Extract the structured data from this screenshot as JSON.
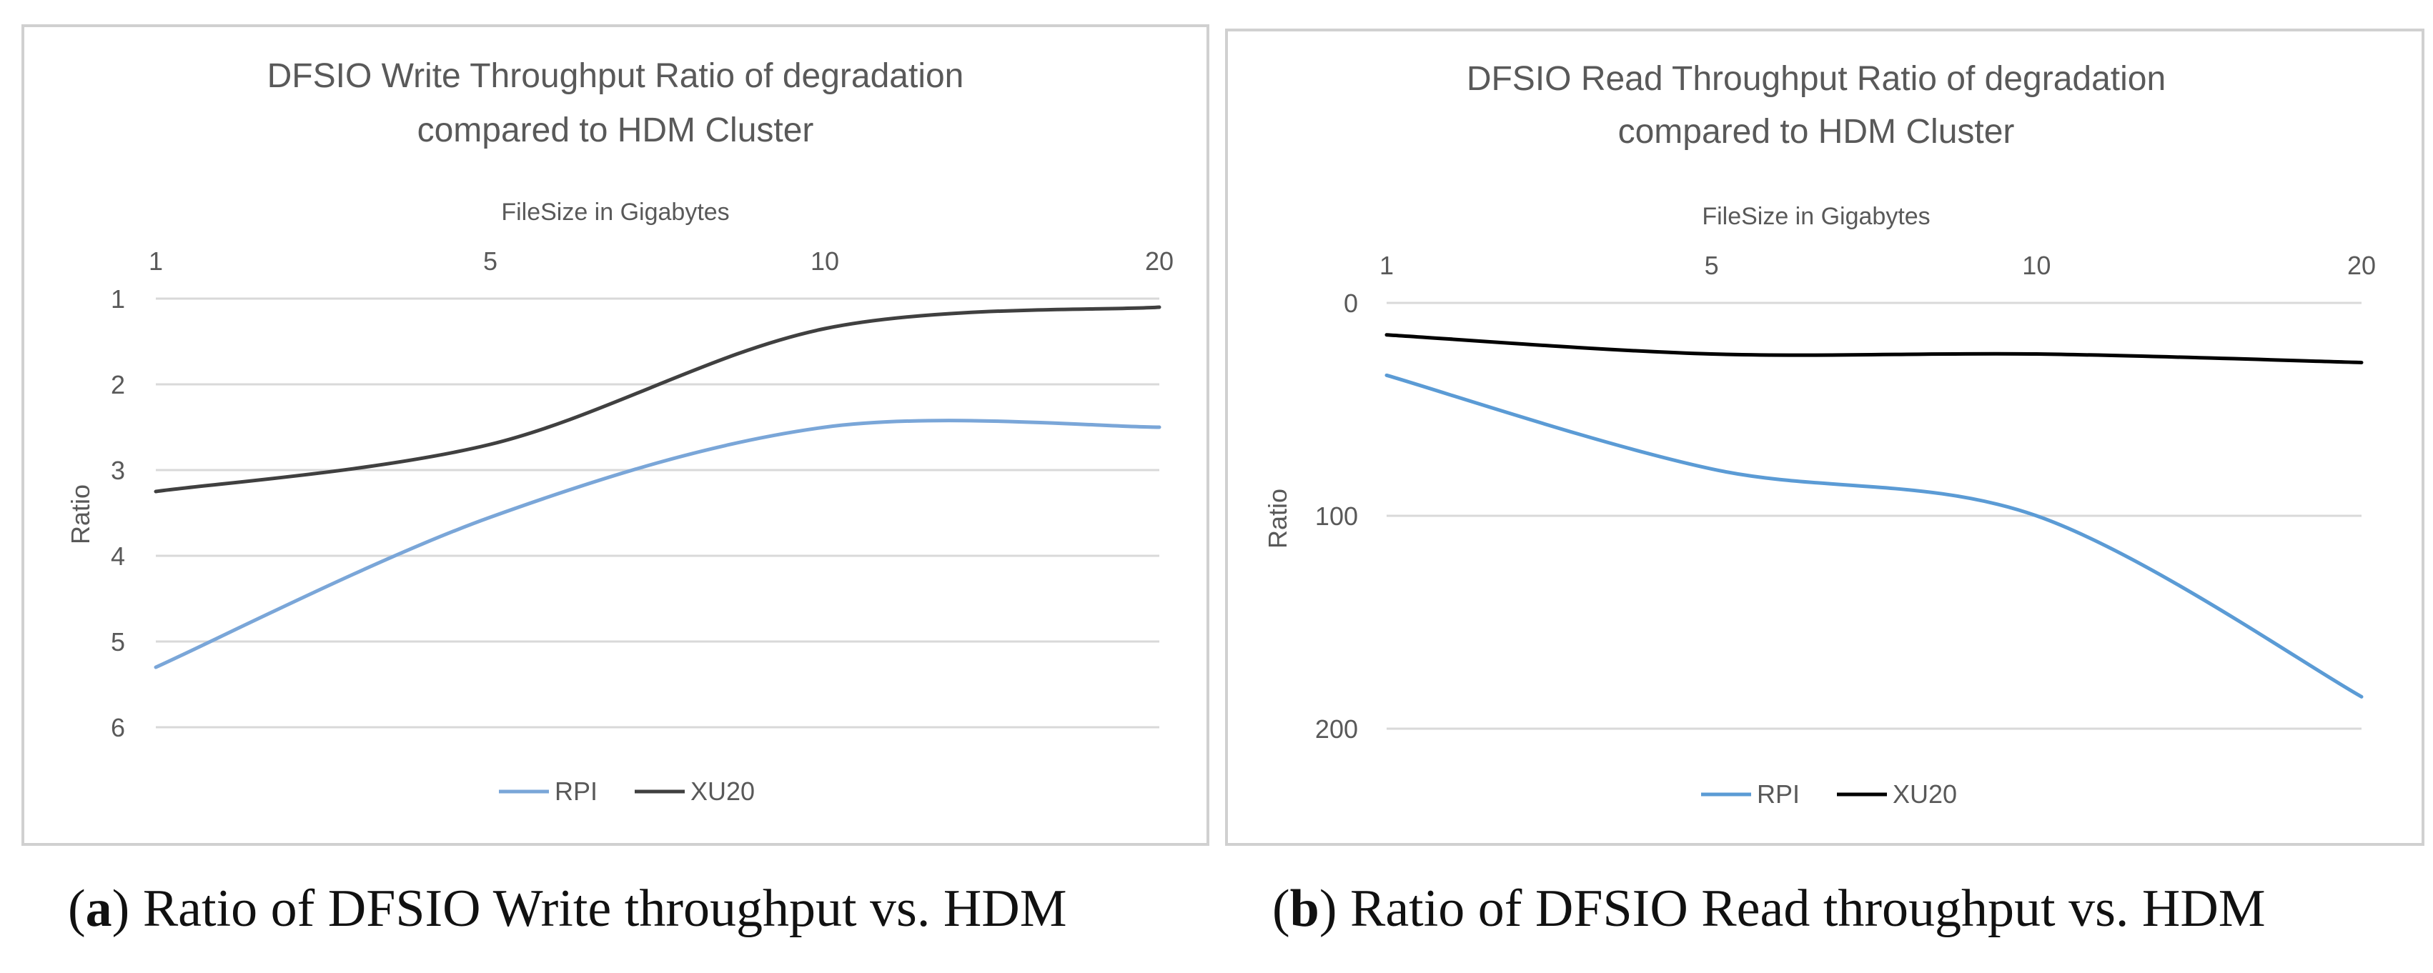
{
  "chart_data": [
    {
      "type": "line",
      "title_line1": "DFSIO Write Throughput Ratio of degradation",
      "title_line2": "compared to HDM Cluster",
      "xlabel": "FileSize in Gigabytes",
      "ylabel": "Ratio",
      "categories": [
        "1",
        "5",
        "10",
        "20"
      ],
      "yticks": [
        "1",
        "2",
        "3",
        "4",
        "5",
        "6"
      ],
      "ylim": [
        1,
        6
      ],
      "y_inverted": true,
      "series": [
        {
          "name": "RPI",
          "color": "#7aa6d8",
          "values": [
            5.3,
            3.55,
            2.5,
            2.5
          ]
        },
        {
          "name": "XU20",
          "color": "#404040",
          "values": [
            3.25,
            2.7,
            1.35,
            1.1
          ]
        }
      ],
      "legend": "bottom",
      "caption_label": "a",
      "caption_open": "(",
      "caption_close": ")",
      "caption_text": " Ratio of DFSIO Write throughput vs. HDM"
    },
    {
      "type": "line",
      "title_line1": "DFSIO Read Throughput Ratio of degradation",
      "title_line2": "compared to HDM Cluster",
      "xlabel": "FileSize in Gigabytes",
      "ylabel": "Ratio",
      "categories": [
        "1",
        "5",
        "10",
        "20"
      ],
      "yticks": [
        "0",
        "100",
        "200"
      ],
      "ylim": [
        0,
        200
      ],
      "y_inverted": true,
      "series": [
        {
          "name": "RPI",
          "color": "#5b9bd5",
          "values": [
            34,
            78,
            100,
            185
          ]
        },
        {
          "name": "XU20",
          "color": "#000000",
          "values": [
            15,
            24,
            24,
            28
          ]
        }
      ],
      "legend": "bottom",
      "caption_label": "b",
      "caption_open": "(",
      "caption_close": ")",
      "caption_text": " Ratio of DFSIO Read throughput vs. HDM"
    }
  ]
}
